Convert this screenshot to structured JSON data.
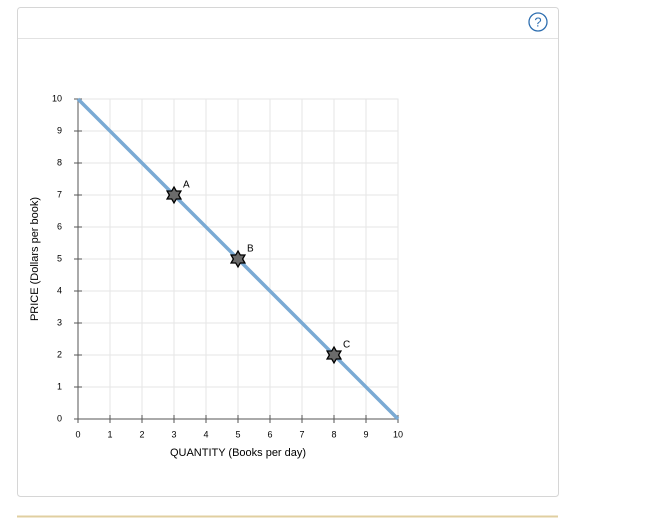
{
  "help_label": "?",
  "chart_data": {
    "type": "line",
    "xlabel": "QUANTITY (Books per day)",
    "ylabel": "PRICE (Dollars per book)",
    "xlim": [
      0,
      10
    ],
    "ylim": [
      0,
      10
    ],
    "xticks": [
      0,
      1,
      2,
      3,
      4,
      5,
      6,
      7,
      8,
      9,
      10
    ],
    "yticks": [
      0,
      1,
      2,
      3,
      4,
      5,
      6,
      7,
      8,
      9,
      10
    ],
    "grid": true,
    "line": {
      "x": [
        0,
        10
      ],
      "values": [
        10,
        0
      ],
      "color": "#7aaad4"
    },
    "points": {
      "labels": [
        "A",
        "B",
        "C"
      ],
      "x": [
        3,
        5,
        8
      ],
      "values": [
        7,
        5,
        2
      ],
      "color": "#6b6b6b"
    }
  }
}
